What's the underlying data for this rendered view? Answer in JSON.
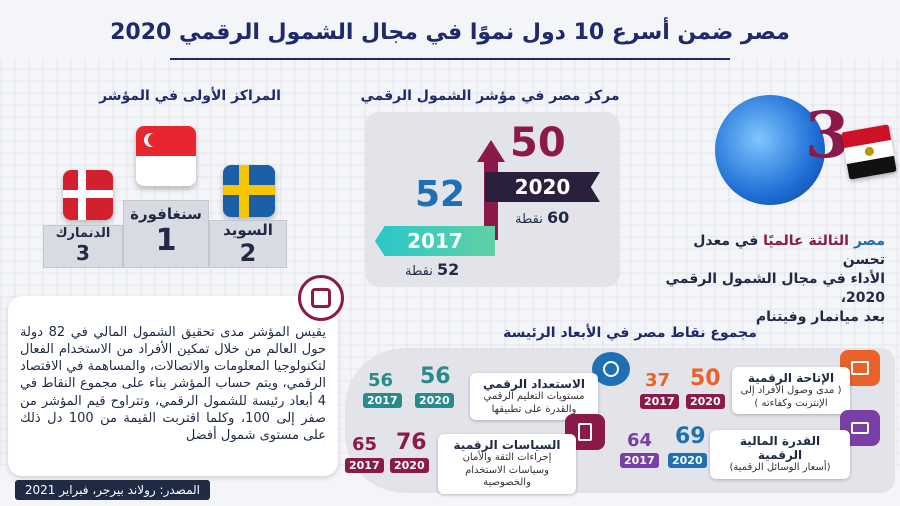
{
  "title": "مصر ضمن أسرع 10 دول نموًا في مجال الشمول الرقمي 2020",
  "ranking": {
    "heading": "المراكز الأولى في المؤشر",
    "first": {
      "country": "سنغافورة",
      "rank": "1"
    },
    "second": {
      "country": "السويد",
      "rank": "2"
    },
    "third": {
      "country": "الدنمارك",
      "rank": "3"
    }
  },
  "egypt_rank": {
    "heading": "مركز مصر في مؤشر الشمول الرقمي",
    "rank_2020": "50",
    "year_2020": "2020",
    "points_2020": "60",
    "rank_2017": "52",
    "year_2017": "2017",
    "points_2017": "52",
    "points_label": "نقطة"
  },
  "highlight": {
    "big_number": "3",
    "lead": "مصر",
    "lead_rest": "الثالثة عالميًا",
    "line1": "في معدل تحسن",
    "line2": "الأداء في مجال الشمول الرقمي 2020،",
    "line3": "بعد ميانمار وفيتنام"
  },
  "description": "يقيس المؤشر مدى تحقيق الشمول المالي في 82 دولة حول العالم من خلال تمكين الأفراد من الاستخدام الفعال لتكنولوجيا المعلومات والاتصالات، والمساهمة في الاقتصاد الرقمي، ويتم حساب المؤشر بناء على مجموع النقاط في 4 أبعاد رئيسة للشمول الرقمي، وتتراوح قيم المؤشر من صفر إلى 100، وكلما اقتربت القيمة من 100 دل ذلك على مستوى شمول أفضل",
  "dimensions": {
    "heading": "مجموع نقاط مصر في الأبعاد الرئيسة",
    "accessibility": {
      "title": "الإتاحة الرقمية",
      "sub": "( مدى وصول الأفراد إلى الإنترنت وكفاءته )",
      "v2020": "50",
      "v2017": "37"
    },
    "readiness": {
      "title": "الاستعداد الرقمي",
      "sub": "مستويات التعليم الرقمي والقدرة على تطبيقها",
      "v2020": "56",
      "v2017": "56"
    },
    "affordability": {
      "title": "القدرة المالية الرقمية",
      "sub": "(أسعار الوسائل الرقمية)",
      "v2020": "69",
      "v2017": "64"
    },
    "policy": {
      "title": "السياسات الرقمية",
      "sub": "إجراءات الثقة والأمان وسياسات الاستخدام والخصوصية",
      "v2020": "76",
      "v2017": "65"
    },
    "year_2020": "2020",
    "year_2017": "2017"
  },
  "source": "المصدر: رولاند بيرجر، فبراير 2021",
  "colors": {
    "navy": "#1f2a6b",
    "maroon": "#8b1a4a",
    "teal": "#2a8a8a",
    "blue": "#1f6fb5",
    "orange": "#e8622a"
  }
}
